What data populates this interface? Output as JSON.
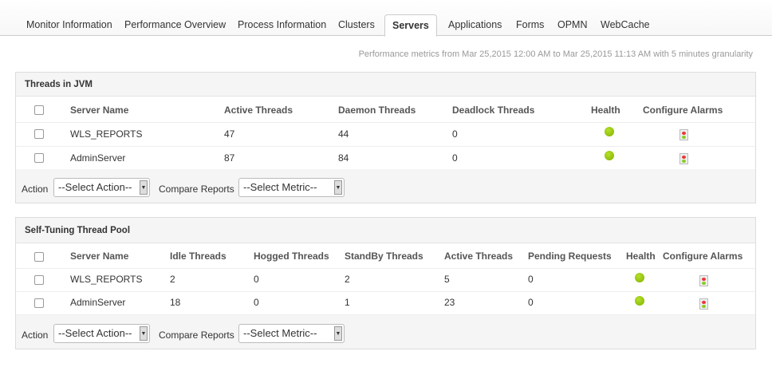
{
  "tabs": [
    "Monitor Information",
    "Performance Overview",
    "Process Information",
    "Clusters",
    "Servers",
    "Applications",
    "Forms",
    "OPMN",
    "WebCache"
  ],
  "active_tab": "Servers",
  "metrics_note": "Performance metrics from Mar 25,2015 12:00 AM to Mar 25,2015 11:13 AM with 5 minutes granularity",
  "panels": [
    {
      "title": "Threads in JVM",
      "columns": [
        "Server Name",
        "Active Threads",
        "Daemon Threads",
        "Deadlock Threads",
        "Health",
        "Configure Alarms"
      ],
      "rows": [
        [
          "WLS_REPORTS",
          "47",
          "44",
          "0"
        ],
        [
          "AdminServer",
          "87",
          "84",
          "0"
        ]
      ],
      "health": [
        "green",
        "green"
      ]
    },
    {
      "title": "Self-Tuning Thread Pool",
      "columns": [
        "Server Name",
        "Idle Threads",
        "Hogged Threads",
        "StandBy Threads",
        "Active Threads",
        "Pending Requests",
        "Health",
        "Configure Alarms"
      ],
      "rows": [
        [
          "WLS_REPORTS",
          "2",
          "0",
          "2",
          "5",
          "0"
        ],
        [
          "AdminServer",
          "18",
          "0",
          "1",
          "23",
          "0"
        ]
      ],
      "health": [
        "green",
        "green"
      ]
    }
  ],
  "footer": {
    "action_label": "Action",
    "action_value": "--Select Action--",
    "compare_label": "Compare Reports",
    "compare_value": "--Select Metric--"
  },
  "colors": {
    "health_ok": "#8cc400"
  }
}
